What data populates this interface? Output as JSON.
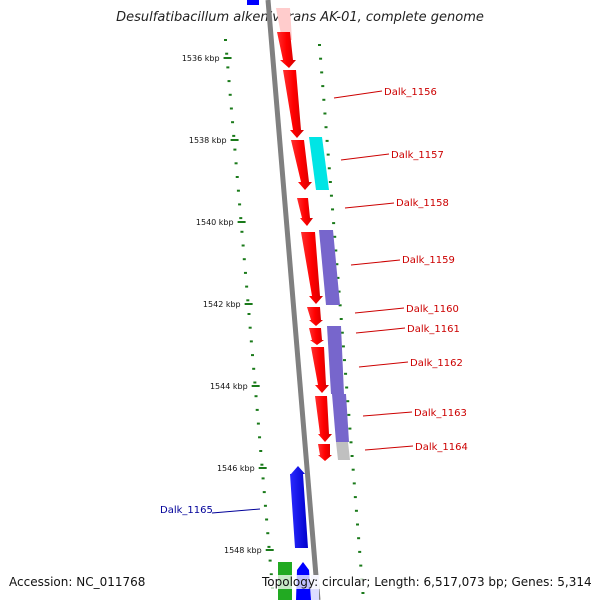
{
  "title": "Desulfatibacillum alkenivorans AK-01, complete genome",
  "footer": {
    "accession": "Accession: NC_011768",
    "topology": "Topology: circular; Length: 6,517,073 bp; Genes: 5,314"
  },
  "scale": [
    {
      "label": "1536 kbp",
      "kbp": 1536
    },
    {
      "label": "1538 kbp",
      "kbp": 1538
    },
    {
      "label": "1540 kbp",
      "kbp": 1540
    },
    {
      "label": "1542 kbp",
      "kbp": 1542
    },
    {
      "label": "1544 kbp",
      "kbp": 1544
    },
    {
      "label": "1546 kbp",
      "kbp": 1546
    },
    {
      "label": "1548 kbp",
      "kbp": 1548
    }
  ],
  "genes": [
    {
      "name": "Dalk_1156",
      "color": "#cc0000"
    },
    {
      "name": "Dalk_1157",
      "color": "#cc0000"
    },
    {
      "name": "Dalk_1158",
      "color": "#cc0000"
    },
    {
      "name": "Dalk_1159",
      "color": "#cc0000"
    },
    {
      "name": "Dalk_1160",
      "color": "#cc0000"
    },
    {
      "name": "Dalk_1161",
      "color": "#cc0000"
    },
    {
      "name": "Dalk_1162",
      "color": "#cc0000"
    },
    {
      "name": "Dalk_1163",
      "color": "#cc0000"
    },
    {
      "name": "Dalk_1164",
      "color": "#cc0000"
    },
    {
      "name": "Dalk_1165",
      "color": "#000099"
    }
  ],
  "colors": {
    "red_gene": "#ff0000",
    "blue_gene": "#0000ff",
    "cyan_feature": "#00e5e5",
    "purple_feature": "#7766cc",
    "green_gene": "#22aa22",
    "backbone": "#808080",
    "tick": "#1a7a1a"
  }
}
